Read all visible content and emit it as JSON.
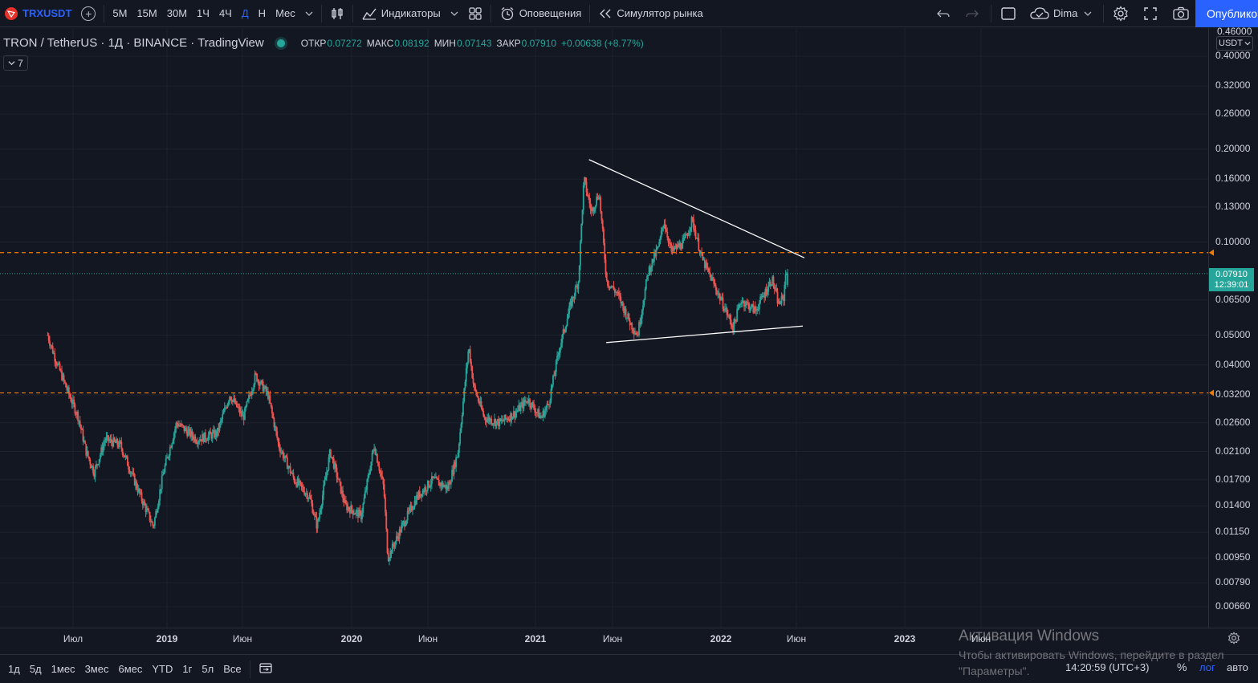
{
  "toolbar": {
    "symbol": "TRXUSDT",
    "intervals": [
      "5М",
      "15М",
      "30М",
      "1Ч",
      "4Ч",
      "Д",
      "Н",
      "Мес"
    ],
    "active_interval": "Д",
    "indicators_label": "Индикаторы",
    "alerts_label": "Оповещения",
    "replay_label": "Симулятор рынка",
    "user_name": "Dima",
    "publish_label": "Опублико"
  },
  "legend": {
    "title": "TRON / TetherUS · 1Д · BINANCE · TradingView",
    "open_label": "ОТКР",
    "open": "0.07272",
    "high_label": "МАКС",
    "high": "0.08192",
    "low_label": "МИН",
    "low": "0.07143",
    "close_label": "ЗАКР",
    "close": "0.07910",
    "change": "+0.00638 (+8.77%)",
    "indicators_count": "7"
  },
  "price_axis": {
    "currency": "USDT",
    "top_clipped_label": "0.46000",
    "labels": [
      "0.40000",
      "0.32000",
      "0.26000",
      "0.20000",
      "0.16000",
      "0.13000",
      "0.10000",
      "0.06500",
      "0.05000",
      "0.04000",
      "0.03200",
      "0.02600",
      "0.02100",
      "0.01700",
      "0.01400",
      "0.01150",
      "0.00950",
      "0.00790",
      "0.00660"
    ],
    "last_price": "0.07910",
    "countdown": "12:39:01"
  },
  "time_axis": {
    "labels": [
      "Июл",
      "2019",
      "Июн",
      "2020",
      "Июн",
      "2021",
      "Июн",
      "2022",
      "Июн",
      "2023",
      "Июн"
    ]
  },
  "bottom_bar": {
    "ranges": [
      "1д",
      "5д",
      "1мес",
      "3мес",
      "6мес",
      "YTD",
      "1г",
      "5л",
      "Все"
    ],
    "clock": "14:20:59 (UTC+3)",
    "percent_label": "%",
    "log_label": "лог",
    "auto_label": "авто"
  },
  "watermark": {
    "title": "Активация Windows",
    "line1": "Чтобы активировать Windows, перейдите в раздел",
    "line2": "\"Параметры\"."
  },
  "chart_data": {
    "type": "candlestick",
    "symbol": "TRXUSDT",
    "scale": "log",
    "ylim": [
      0.0058,
      0.47
    ],
    "x_range": [
      "2018-05",
      "2023-09"
    ],
    "grid": true,
    "colors": {
      "up": "#26a69a",
      "down": "#ef5350",
      "trendline": "#ffffff",
      "level": "#f57c00",
      "last_price": "#26a69a"
    },
    "trend_path": [
      [
        "2018-05-10",
        0.05
      ],
      [
        "2018-05-25",
        0.042
      ],
      [
        "2018-06-15",
        0.034
      ],
      [
        "2018-07-10",
        0.027
      ],
      [
        "2018-07-25",
        0.021
      ],
      [
        "2018-08-10",
        0.018
      ],
      [
        "2018-09-01",
        0.023
      ],
      [
        "2018-10-01",
        0.022
      ],
      [
        "2018-11-10",
        0.015
      ],
      [
        "2018-12-05",
        0.012
      ],
      [
        "2018-12-25",
        0.018
      ],
      [
        "2019-01-20",
        0.026
      ],
      [
        "2019-03-01",
        0.023
      ],
      [
        "2019-04-10",
        0.024
      ],
      [
        "2019-05-05",
        0.032
      ],
      [
        "2019-06-01",
        0.027
      ],
      [
        "2019-06-25",
        0.037
      ],
      [
        "2019-07-20",
        0.032
      ],
      [
        "2019-08-10",
        0.022
      ],
      [
        "2019-09-10",
        0.017
      ],
      [
        "2019-10-10",
        0.015
      ],
      [
        "2019-10-25",
        0.012
      ],
      [
        "2019-11-20",
        0.021
      ],
      [
        "2019-12-20",
        0.014
      ],
      [
        "2020-01-20",
        0.013
      ],
      [
        "2020-02-15",
        0.022
      ],
      [
        "2020-03-05",
        0.016
      ],
      [
        "2020-03-13",
        0.0095
      ],
      [
        "2020-04-10",
        0.012
      ],
      [
        "2020-05-10",
        0.015
      ],
      [
        "2020-06-10",
        0.017
      ],
      [
        "2020-07-10",
        0.016
      ],
      [
        "2020-07-30",
        0.021
      ],
      [
        "2020-08-20",
        0.046
      ],
      [
        "2020-08-30",
        0.034
      ],
      [
        "2020-09-20",
        0.027
      ],
      [
        "2020-10-20",
        0.026
      ],
      [
        "2020-11-20",
        0.028
      ],
      [
        "2020-12-15",
        0.031
      ],
      [
        "2021-01-10",
        0.027
      ],
      [
        "2021-01-25",
        0.03
      ],
      [
        "2021-02-15",
        0.045
      ],
      [
        "2021-03-10",
        0.063
      ],
      [
        "2021-03-25",
        0.075
      ],
      [
        "2021-04-05",
        0.16
      ],
      [
        "2021-04-20",
        0.125
      ],
      [
        "2021-05-05",
        0.145
      ],
      [
        "2021-05-20",
        0.075
      ],
      [
        "2021-06-10",
        0.068
      ],
      [
        "2021-07-05",
        0.055
      ],
      [
        "2021-07-20",
        0.05
      ],
      [
        "2021-08-10",
        0.08
      ],
      [
        "2021-09-01",
        0.098
      ],
      [
        "2021-09-10",
        0.118
      ],
      [
        "2021-09-25",
        0.093
      ],
      [
        "2021-10-20",
        0.1
      ],
      [
        "2021-11-05",
        0.118
      ],
      [
        "2021-11-25",
        0.088
      ],
      [
        "2021-12-15",
        0.075
      ],
      [
        "2022-01-05",
        0.063
      ],
      [
        "2022-01-25",
        0.053
      ],
      [
        "2022-02-10",
        0.065
      ],
      [
        "2022-03-10",
        0.06
      ],
      [
        "2022-03-28",
        0.068
      ],
      [
        "2022-04-12",
        0.076
      ],
      [
        "2022-04-25",
        0.063
      ],
      [
        "2022-05-05",
        0.066
      ],
      [
        "2022-05-10",
        0.083
      ],
      [
        "2022-05-13",
        0.0791
      ]
    ],
    "last_candle": {
      "open": 0.07272,
      "high": 0.08192,
      "low": 0.07143,
      "close": 0.0791
    },
    "horizontal_levels": [
      0.0925,
      0.0325
    ],
    "trendlines": [
      {
        "from": [
          "2021-04-15",
          0.185
        ],
        "to": [
          "2022-06-15",
          0.089
        ]
      },
      {
        "from": [
          "2021-05-19",
          0.0473
        ],
        "to": [
          "2022-06-12",
          0.0535
        ]
      }
    ]
  }
}
